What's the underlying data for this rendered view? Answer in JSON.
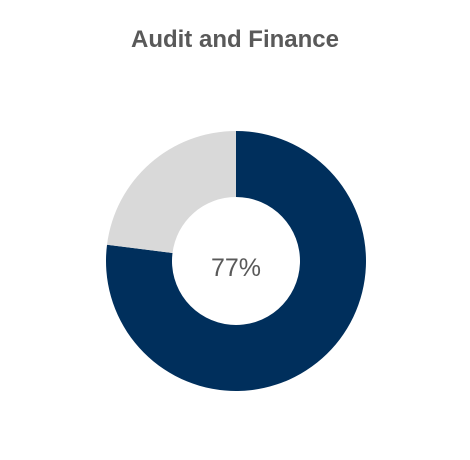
{
  "chart_data": {
    "type": "pie",
    "title": "Audit and Finance",
    "center_label": "77%",
    "slices": [
      {
        "value": 77,
        "color": "#002f5c"
      },
      {
        "value": 23,
        "color": "#d9d9d9"
      }
    ]
  }
}
